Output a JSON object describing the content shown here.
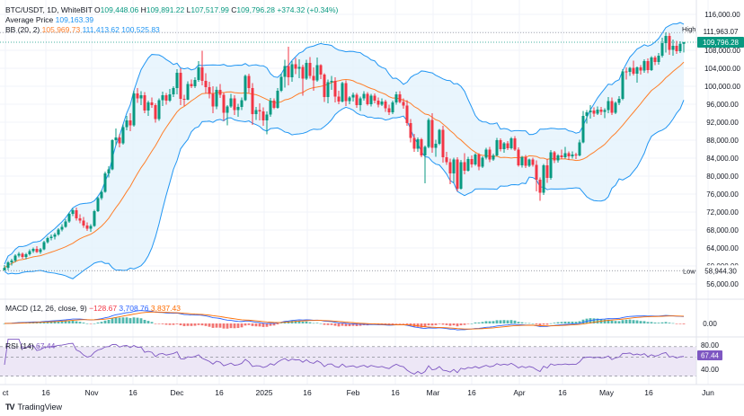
{
  "header": {
    "symbol": "BTC/USDT, 1D, WhiteBIT",
    "ohlc": [
      {
        "k": "O",
        "v": "109,448.06"
      },
      {
        "k": "H",
        "v": "109,891.22"
      },
      {
        "k": "L",
        "v": "107,517.99"
      },
      {
        "k": "C",
        "v": "109,796.28"
      }
    ],
    "change": "+374.32 (+0.34%)",
    "avg_label": "Average Price",
    "avg_value": "109,163.39",
    "bb_label": "BB (20, 2)",
    "bb_basis": "105,969.73",
    "bb_upper": "111,413.62",
    "bb_lower": "100,525.83"
  },
  "macd": {
    "label": "MACD (12, 26, close, 9)",
    "hist": "−128.67",
    "macd": "3,708.76",
    "signal": "3,837.43",
    "zero_label": "0.00"
  },
  "rsi": {
    "label": "RSI (14)",
    "value": "67.44",
    "top_label": "80.00",
    "bottom_label": "40.00"
  },
  "price_axis": {
    "ticks": [
      "116,000.00",
      "112,000.00",
      "108,000.00",
      "104,000.00",
      "100,000.00",
      "96,000.00",
      "92,000.00",
      "88,000.00",
      "84,000.00",
      "80,000.00",
      "76,000.00",
      "72,000.00",
      "68,000.00",
      "64,000.00",
      "60,000.00",
      "56,000.00"
    ],
    "high_label": "High",
    "high_value": "111,963.07",
    "low_label": "Low",
    "low_value": "58,944.30",
    "current_value": "109,796.28"
  },
  "time_axis": [
    "ct",
    "16",
    "Nov",
    "16",
    "Dec",
    "16",
    "2025",
    "16",
    "Feb",
    "16",
    "Mar",
    "16",
    "Apr",
    "16",
    "May",
    "16",
    "Jun"
  ],
  "branding": {
    "text": "TradingView",
    "mark": "TV"
  },
  "colors": {
    "up": "#089981",
    "down": "#f23645",
    "bb_basis": "#ff7f2a",
    "bb_band": "#2196f3",
    "bb_fill": "#e3f2fd",
    "macd_line": "#2962ff",
    "signal_line": "#ff6d00",
    "rsi_line": "#7e57c2",
    "rsi_fill": "#ede7f6",
    "current_badge": "#089981"
  },
  "chart_data": {
    "type": "candlestick",
    "symbol": "BTC/USDT",
    "interval": "1D",
    "ylim": [
      54000,
      118000
    ],
    "candles_ohlc": [
      [
        59000,
        60200,
        58944,
        59600
      ],
      [
        59600,
        61100,
        59100,
        60800
      ],
      [
        60800,
        61600,
        60100,
        61200
      ],
      [
        61200,
        62600,
        60800,
        62300
      ],
      [
        62300,
        63100,
        61900,
        62700
      ],
      [
        62700,
        63000,
        61600,
        62000
      ],
      [
        62000,
        62900,
        61500,
        62600
      ],
      [
        62600,
        63700,
        62300,
        63300
      ],
      [
        63300,
        64100,
        62900,
        63800
      ],
      [
        63800,
        64400,
        62900,
        63100
      ],
      [
        63100,
        64000,
        62700,
        63700
      ],
      [
        63700,
        65600,
        63500,
        65300
      ],
      [
        65300,
        66500,
        65000,
        66200
      ],
      [
        66200,
        67000,
        65700,
        66500
      ],
      [
        66500,
        67400,
        65900,
        67000
      ],
      [
        67000,
        68400,
        66700,
        68100
      ],
      [
        68100,
        69300,
        67700,
        68700
      ],
      [
        68700,
        70400,
        68500,
        69900
      ],
      [
        69900,
        71900,
        69600,
        71600
      ],
      [
        71600,
        72800,
        71100,
        72400
      ],
      [
        72400,
        73000,
        70100,
        70600
      ],
      [
        70600,
        71500,
        69500,
        70100
      ],
      [
        70100,
        70900,
        68500,
        69000
      ],
      [
        69000,
        69700,
        67800,
        68300
      ],
      [
        68300,
        69300,
        67600,
        68900
      ],
      [
        68900,
        72500,
        68700,
        72200
      ],
      [
        72200,
        75400,
        72000,
        75100
      ],
      [
        75100,
        76900,
        74700,
        76500
      ],
      [
        76500,
        81000,
        76300,
        80600
      ],
      [
        80600,
        82200,
        79700,
        81500
      ],
      [
        81500,
        88200,
        81300,
        88000
      ],
      [
        88000,
        90600,
        86800,
        88600
      ],
      [
        88600,
        89300,
        86400,
        87300
      ],
      [
        87300,
        91500,
        87000,
        90900
      ],
      [
        90900,
        93400,
        90200,
        92400
      ],
      [
        92400,
        94000,
        90000,
        91300
      ],
      [
        91300,
        99000,
        91000,
        98400
      ],
      [
        98400,
        99600,
        96300,
        97300
      ],
      [
        97300,
        98900,
        95800,
        98000
      ],
      [
        98000,
        98700,
        94000,
        94600
      ],
      [
        94600,
        96800,
        93400,
        96400
      ],
      [
        96400,
        97500,
        95200,
        95800
      ],
      [
        95800,
        96200,
        91900,
        92700
      ],
      [
        92700,
        97300,
        92300,
        96900
      ],
      [
        96900,
        98800,
        95600,
        98000
      ],
      [
        98000,
        98500,
        95900,
        96800
      ],
      [
        96800,
        99400,
        96500,
        98200
      ],
      [
        98200,
        100000,
        97600,
        99600
      ],
      [
        99600,
        103800,
        98200,
        103000
      ],
      [
        103000,
        104000,
        95800,
        97200
      ],
      [
        97200,
        98100,
        95600,
        97000
      ],
      [
        97000,
        101100,
        96900,
        100500
      ],
      [
        100500,
        101500,
        99600,
        100000
      ],
      [
        100000,
        102000,
        99600,
        101400
      ],
      [
        101400,
        105600,
        101000,
        104200
      ],
      [
        104200,
        107900,
        100200,
        101200
      ],
      [
        101200,
        102900,
        98400,
        99800
      ],
      [
        99800,
        101000,
        97300,
        98300
      ],
      [
        98300,
        100000,
        94000,
        95500
      ],
      [
        95500,
        99900,
        94900,
        99200
      ],
      [
        99200,
        100500,
        97400,
        98100
      ],
      [
        98100,
        98600,
        92300,
        94100
      ],
      [
        94100,
        95800,
        91300,
        95500
      ],
      [
        95500,
        98300,
        95200,
        97300
      ],
      [
        97300,
        98000,
        93600,
        94700
      ],
      [
        94700,
        96100,
        93200,
        95400
      ],
      [
        95400,
        97500,
        94700,
        96900
      ],
      [
        96900,
        102600,
        96700,
        102300
      ],
      [
        102300,
        102800,
        98500,
        99600
      ],
      [
        99600,
        100700,
        91400,
        93800
      ],
      [
        93800,
        95400,
        92500,
        94700
      ],
      [
        94700,
        96200,
        92400,
        94400
      ],
      [
        94400,
        95300,
        91200,
        92400
      ],
      [
        92400,
        94400,
        89300,
        93700
      ],
      [
        93700,
        97400,
        93200,
        96800
      ],
      [
        96800,
        97300,
        94900,
        95200
      ],
      [
        95200,
        99600,
        95000,
        99000
      ],
      [
        99000,
        102800,
        98700,
        102100
      ],
      [
        102100,
        105900,
        99700,
        104500
      ],
      [
        104500,
        108800,
        100200,
        102000
      ],
      [
        102000,
        105600,
        101000,
        104900
      ],
      [
        104900,
        106300,
        102700,
        103900
      ],
      [
        103900,
        106000,
        101800,
        104300
      ],
      [
        104300,
        104800,
        97900,
        101700
      ],
      [
        101700,
        105900,
        101400,
        105200
      ],
      [
        105200,
        106500,
        101700,
        102300
      ],
      [
        102300,
        104200,
        99000,
        101300
      ],
      [
        101300,
        106400,
        101000,
        104700
      ],
      [
        104700,
        104900,
        101600,
        102600
      ],
      [
        102600,
        102900,
        96500,
        97600
      ],
      [
        97600,
        101500,
        96200,
        100900
      ],
      [
        100900,
        102300,
        99200,
        101200
      ],
      [
        101200,
        102000,
        96400,
        97700
      ],
      [
        97700,
        99000,
        96000,
        96600
      ],
      [
        96600,
        101000,
        96400,
        100700
      ],
      [
        100700,
        101300,
        95600,
        96700
      ],
      [
        96700,
        97800,
        96000,
        97500
      ],
      [
        97500,
        98600,
        96600,
        98100
      ],
      [
        98100,
        98500,
        95200,
        95800
      ],
      [
        95800,
        97700,
        94500,
        97300
      ],
      [
        97300,
        98900,
        96800,
        98300
      ],
      [
        98300,
        98700,
        95700,
        96000
      ],
      [
        96000,
        98300,
        95500,
        97900
      ],
      [
        97900,
        98400,
        96200,
        96800
      ],
      [
        96800,
        97500,
        95300,
        95900
      ],
      [
        95900,
        97300,
        95600,
        96600
      ],
      [
        96600,
        97000,
        94300,
        95100
      ],
      [
        95100,
        95900,
        93600,
        94200
      ],
      [
        94200,
        96800,
        93800,
        96400
      ],
      [
        96400,
        98800,
        95900,
        98200
      ],
      [
        98200,
        98900,
        96200,
        96500
      ],
      [
        96500,
        97300,
        95000,
        95700
      ],
      [
        95700,
        96900,
        91200,
        91800
      ],
      [
        91800,
        92700,
        87500,
        88500
      ],
      [
        88500,
        89400,
        85400,
        86100
      ],
      [
        86100,
        88600,
        85400,
        88200
      ],
      [
        88200,
        88500,
        84200,
        84600
      ],
      [
        84600,
        86800,
        78400,
        86500
      ],
      [
        86500,
        92900,
        86200,
        92500
      ],
      [
        92500,
        94000,
        85200,
        86300
      ],
      [
        86300,
        88100,
        84300,
        87200
      ],
      [
        87200,
        90500,
        86900,
        90300
      ],
      [
        90300,
        91200,
        83000,
        84200
      ],
      [
        84200,
        85400,
        82500,
        83100
      ],
      [
        83100,
        83900,
        78200,
        80600
      ],
      [
        80600,
        84100,
        78500,
        83700
      ],
      [
        83700,
        84200,
        76600,
        77200
      ],
      [
        77200,
        83600,
        77000,
        83100
      ],
      [
        83100,
        85100,
        80400,
        81200
      ],
      [
        81200,
        84300,
        81000,
        83800
      ],
      [
        83800,
        84600,
        81900,
        82600
      ],
      [
        82600,
        85100,
        82300,
        84800
      ],
      [
        84800,
        85100,
        81300,
        82100
      ],
      [
        82100,
        84400,
        81800,
        84100
      ],
      [
        84100,
        86300,
        83700,
        85900
      ],
      [
        85900,
        86500,
        83100,
        83700
      ],
      [
        83700,
        85000,
        83400,
        84600
      ],
      [
        84600,
        88500,
        84400,
        88000
      ],
      [
        88000,
        88400,
        85500,
        86000
      ],
      [
        86000,
        87600,
        85200,
        87300
      ],
      [
        87300,
        87800,
        85800,
        86200
      ],
      [
        86200,
        88700,
        85900,
        88400
      ],
      [
        88400,
        88900,
        85600,
        85900
      ],
      [
        85900,
        86400,
        82100,
        82400
      ],
      [
        82400,
        84500,
        81900,
        84200
      ],
      [
        84200,
        84700,
        81800,
        82300
      ],
      [
        82300,
        83900,
        82000,
        83700
      ],
      [
        83700,
        84100,
        82100,
        82500
      ],
      [
        82500,
        83500,
        76600,
        79200
      ],
      [
        79200,
        79700,
        74500,
        76300
      ],
      [
        76300,
        82700,
        75800,
        82400
      ],
      [
        82400,
        83800,
        78500,
        79600
      ],
      [
        79600,
        85800,
        79200,
        85300
      ],
      [
        85300,
        85600,
        82900,
        83500
      ],
      [
        83500,
        84900,
        83000,
        84600
      ],
      [
        84600,
        85900,
        83800,
        84200
      ],
      [
        84200,
        86500,
        83900,
        85100
      ],
      [
        85100,
        85500,
        83600,
        84400
      ],
      [
        84400,
        85500,
        83900,
        84800
      ],
      [
        84800,
        85200,
        83800,
        84600
      ],
      [
        84600,
        88100,
        84400,
        87500
      ],
      [
        87500,
        94500,
        87300,
        93400
      ],
      [
        93400,
        94700,
        91700,
        94200
      ],
      [
        94200,
        95800,
        92800,
        94600
      ],
      [
        94600,
        95300,
        93200,
        93900
      ],
      [
        93900,
        95500,
        93600,
        94800
      ],
      [
        94800,
        95400,
        93600,
        94300
      ],
      [
        94300,
        95100,
        92900,
        94700
      ],
      [
        94700,
        97600,
        94000,
        96700
      ],
      [
        96700,
        97500,
        93600,
        94100
      ],
      [
        94100,
        96600,
        93800,
        96300
      ],
      [
        96300,
        97800,
        95800,
        97200
      ],
      [
        97200,
        103800,
        96900,
        103300
      ],
      [
        103300,
        104200,
        101500,
        103200
      ],
      [
        103200,
        104300,
        102300,
        104100
      ],
      [
        104100,
        105700,
        102400,
        102800
      ],
      [
        102800,
        104400,
        100800,
        104200
      ],
      [
        104200,
        104700,
        102600,
        103500
      ],
      [
        103500,
        106000,
        103000,
        105600
      ],
      [
        105600,
        106200,
        102900,
        103600
      ],
      [
        103600,
        106700,
        103400,
        106400
      ],
      [
        106400,
        106800,
        104700,
        105400
      ],
      [
        105400,
        107400,
        104800,
        106800
      ],
      [
        106800,
        110800,
        106400,
        109600
      ],
      [
        109600,
        111963,
        107500,
        111200
      ],
      [
        111200,
        111800,
        107000,
        108100
      ],
      [
        108100,
        110400,
        106800,
        109000
      ],
      [
        109000,
        110100,
        107200,
        107800
      ],
      [
        107800,
        110000,
        107400,
        109448
      ],
      [
        109448,
        109891,
        107518,
        109796
      ]
    ]
  }
}
